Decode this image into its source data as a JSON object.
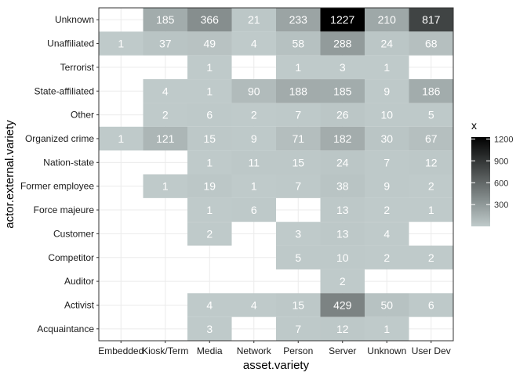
{
  "chart_data": {
    "type": "heatmap",
    "title": "",
    "xlabel": "asset.variety",
    "ylabel": "actor.external.variety",
    "x_categories": [
      "Embedded",
      "Kiosk/Term",
      "Media",
      "Network",
      "Person",
      "Server",
      "Unknown",
      "User Dev"
    ],
    "y_categories": [
      "Unknown",
      "Unaffiliated",
      "Terrorist",
      "State-affiliated",
      "Other",
      "Organized crime",
      "Nation-state",
      "Former employee",
      "Force majeure",
      "Customer",
      "Competitor",
      "Auditor",
      "Activist",
      "Acquaintance"
    ],
    "values": [
      [
        null,
        185,
        366,
        21,
        233,
        1227,
        210,
        817
      ],
      [
        1,
        37,
        49,
        4,
        58,
        288,
        24,
        68
      ],
      [
        null,
        null,
        1,
        null,
        1,
        3,
        1,
        null
      ],
      [
        null,
        4,
        1,
        90,
        188,
        185,
        9,
        186
      ],
      [
        null,
        2,
        6,
        2,
        7,
        26,
        10,
        5
      ],
      [
        1,
        121,
        15,
        9,
        71,
        182,
        30,
        67
      ],
      [
        null,
        null,
        1,
        11,
        15,
        24,
        7,
        12
      ],
      [
        null,
        1,
        19,
        1,
        7,
        38,
        9,
        2
      ],
      [
        null,
        null,
        1,
        6,
        null,
        13,
        2,
        1
      ],
      [
        null,
        null,
        2,
        null,
        3,
        13,
        4,
        null
      ],
      [
        null,
        null,
        null,
        null,
        5,
        10,
        2,
        2
      ],
      [
        null,
        null,
        null,
        null,
        null,
        2,
        null,
        null
      ],
      [
        null,
        null,
        4,
        4,
        15,
        429,
        50,
        6
      ],
      [
        null,
        null,
        3,
        null,
        7,
        12,
        1,
        null
      ]
    ],
    "color_scale": {
      "low_color": "#bfcaca",
      "high_color": "#000000",
      "min": 1,
      "max": 1227
    },
    "legend": {
      "title": "x",
      "ticks": [
        300,
        600,
        900,
        1200
      ],
      "placement": "right"
    },
    "grid": true
  }
}
